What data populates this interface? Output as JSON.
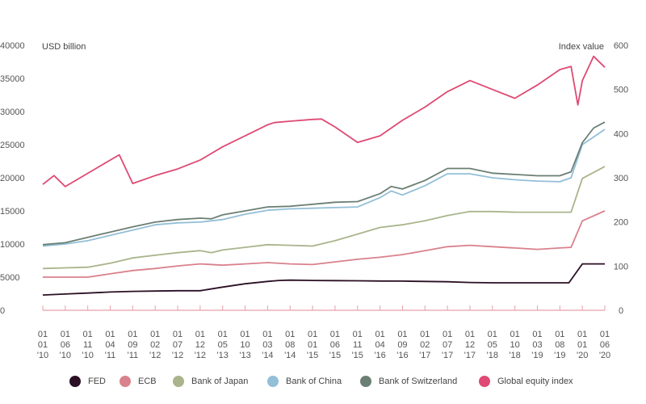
{
  "chart_data": {
    "type": "line",
    "title": "",
    "left_axis_label": "USD billion",
    "right_axis_label": "Index value",
    "left_ylim": [
      0,
      40000
    ],
    "left_yticks": [
      "0",
      "5000",
      "10000",
      "15000",
      "20000",
      "25000",
      "30000",
      "35000",
      "40000"
    ],
    "right_ylim": [
      0,
      600
    ],
    "right_yticks": [
      "0",
      "100",
      "200",
      "300",
      "400",
      "500",
      "600"
    ],
    "x_tick_labels": [
      [
        "01",
        "01",
        "'10"
      ],
      [
        "01",
        "06",
        "'10"
      ],
      [
        "01",
        "11",
        "'10"
      ],
      [
        "01",
        "04",
        "'11"
      ],
      [
        "01",
        "09",
        "'11"
      ],
      [
        "01",
        "02",
        "'12"
      ],
      [
        "01",
        "07",
        "'12"
      ],
      [
        "01",
        "12",
        "'12"
      ],
      [
        "01",
        "05",
        "'13"
      ],
      [
        "01",
        "10",
        "'13"
      ],
      [
        "01",
        "03",
        "'14"
      ],
      [
        "01",
        "08",
        "'14"
      ],
      [
        "01",
        "01",
        "'15"
      ],
      [
        "01",
        "06",
        "'15"
      ],
      [
        "01",
        "11",
        "'15"
      ],
      [
        "01",
        "04",
        "'16"
      ],
      [
        "01",
        "09",
        "'16"
      ],
      [
        "01",
        "02",
        "'17"
      ],
      [
        "01",
        "07",
        "'17"
      ],
      [
        "01",
        "12",
        "'17"
      ],
      [
        "01",
        "05",
        "'18"
      ],
      [
        "01",
        "10",
        "'18"
      ],
      [
        "01",
        "03",
        "'19"
      ],
      [
        "01",
        "08",
        "'19"
      ],
      [
        "01",
        "01",
        "'20"
      ],
      [
        "01",
        "06",
        "'20"
      ]
    ],
    "grid": false,
    "legend_position": "bottom",
    "series": [
      {
        "name": "FED",
        "color": "#2b0f24",
        "axis": "left",
        "points": [
          [
            0,
            2300
          ],
          [
            1,
            2450
          ],
          [
            2,
            2600
          ],
          [
            3,
            2750
          ],
          [
            4,
            2850
          ],
          [
            5,
            2900
          ],
          [
            6,
            2950
          ],
          [
            7,
            2950
          ],
          [
            8,
            3500
          ],
          [
            9,
            4000
          ],
          [
            10,
            4350
          ],
          [
            10.5,
            4500
          ],
          [
            11,
            4550
          ],
          [
            12,
            4500
          ],
          [
            13,
            4480
          ],
          [
            14,
            4450
          ],
          [
            15,
            4420
          ],
          [
            16,
            4400
          ],
          [
            17,
            4350
          ],
          [
            18,
            4300
          ],
          [
            19,
            4200
          ],
          [
            20,
            4150
          ],
          [
            21,
            4150
          ],
          [
            22,
            4150
          ],
          [
            23,
            4150
          ],
          [
            23.4,
            4150
          ],
          [
            24,
            7000
          ],
          [
            25,
            7000
          ]
        ]
      },
      {
        "name": "ECB",
        "color": "#d9818c",
        "axis": "left",
        "points": [
          [
            0,
            5000
          ],
          [
            1,
            5000
          ],
          [
            2,
            5000
          ],
          [
            3,
            5500
          ],
          [
            4,
            6000
          ],
          [
            5,
            6300
          ],
          [
            6,
            6700
          ],
          [
            7,
            7000
          ],
          [
            8,
            6800
          ],
          [
            9,
            7000
          ],
          [
            10,
            7200
          ],
          [
            11,
            7000
          ],
          [
            12,
            6900
          ],
          [
            13,
            7300
          ],
          [
            14,
            7700
          ],
          [
            15,
            8000
          ],
          [
            16,
            8400
          ],
          [
            17,
            9000
          ],
          [
            18,
            9600
          ],
          [
            19,
            9800
          ],
          [
            20,
            9600
          ],
          [
            21,
            9400
          ],
          [
            22,
            9200
          ],
          [
            23,
            9400
          ],
          [
            23.5,
            9500
          ],
          [
            24,
            13500
          ],
          [
            25,
            15000
          ]
        ]
      },
      {
        "name": "Bank of Japan",
        "color": "#a9b48c",
        "axis": "left",
        "points": [
          [
            0,
            6300
          ],
          [
            1,
            6400
          ],
          [
            2,
            6500
          ],
          [
            3,
            7100
          ],
          [
            4,
            7900
          ],
          [
            5,
            8300
          ],
          [
            6,
            8700
          ],
          [
            7,
            9000
          ],
          [
            7.5,
            8700
          ],
          [
            8,
            9100
          ],
          [
            9,
            9500
          ],
          [
            10,
            9900
          ],
          [
            11,
            9800
          ],
          [
            12,
            9700
          ],
          [
            13,
            10500
          ],
          [
            14,
            11500
          ],
          [
            15,
            12500
          ],
          [
            16,
            12900
          ],
          [
            17,
            13500
          ],
          [
            18,
            14300
          ],
          [
            19,
            14900
          ],
          [
            20,
            14900
          ],
          [
            21,
            14800
          ],
          [
            22,
            14800
          ],
          [
            23,
            14800
          ],
          [
            23.5,
            14800
          ],
          [
            24,
            19900
          ],
          [
            25,
            21700
          ]
        ]
      },
      {
        "name": "Bank of China",
        "color": "#93bfd7",
        "axis": "left",
        "points": [
          [
            0,
            9700
          ],
          [
            1,
            10000
          ],
          [
            2,
            10500
          ],
          [
            3,
            11300
          ],
          [
            4,
            12100
          ],
          [
            5,
            12900
          ],
          [
            6,
            13200
          ],
          [
            7,
            13300
          ],
          [
            8,
            13700
          ],
          [
            9,
            14500
          ],
          [
            10,
            15100
          ],
          [
            11,
            15300
          ],
          [
            12,
            15400
          ],
          [
            13,
            15500
          ],
          [
            14,
            15600
          ],
          [
            15,
            17000
          ],
          [
            15.5,
            18000
          ],
          [
            16,
            17400
          ],
          [
            17,
            18800
          ],
          [
            18,
            20600
          ],
          [
            19,
            20600
          ],
          [
            20,
            20000
          ],
          [
            21,
            19700
          ],
          [
            22,
            19500
          ],
          [
            23,
            19400
          ],
          [
            23.5,
            20000
          ],
          [
            24,
            25000
          ],
          [
            25,
            27300
          ]
        ]
      },
      {
        "name": "Bank of Switzerland",
        "color": "#6b7f74",
        "axis": "left",
        "points": [
          [
            0,
            9900
          ],
          [
            1,
            10200
          ],
          [
            2,
            11000
          ],
          [
            3,
            11800
          ],
          [
            4,
            12600
          ],
          [
            5,
            13300
          ],
          [
            6,
            13700
          ],
          [
            7,
            13900
          ],
          [
            7.5,
            13800
          ],
          [
            8,
            14400
          ],
          [
            9,
            15000
          ],
          [
            10,
            15600
          ],
          [
            11,
            15700
          ],
          [
            12,
            16000
          ],
          [
            13,
            16300
          ],
          [
            14,
            16400
          ],
          [
            15,
            17600
          ],
          [
            15.5,
            18700
          ],
          [
            16,
            18300
          ],
          [
            17,
            19600
          ],
          [
            18,
            21400
          ],
          [
            19,
            21400
          ],
          [
            20,
            20700
          ],
          [
            21,
            20500
          ],
          [
            22,
            20300
          ],
          [
            23,
            20300
          ],
          [
            23.5,
            20900
          ],
          [
            24,
            25300
          ],
          [
            24.5,
            27500
          ],
          [
            25,
            28400
          ]
        ]
      },
      {
        "name": "Global equity index",
        "color": "#de4a73",
        "axis": "right",
        "points": [
          [
            0,
            285
          ],
          [
            0.5,
            305
          ],
          [
            1,
            280
          ],
          [
            2,
            310
          ],
          [
            3,
            340
          ],
          [
            3.4,
            352
          ],
          [
            4,
            287
          ],
          [
            5,
            305
          ],
          [
            6,
            320
          ],
          [
            7,
            340
          ],
          [
            8,
            370
          ],
          [
            9,
            395
          ],
          [
            10,
            420
          ],
          [
            10.3,
            425
          ],
          [
            11,
            428
          ],
          [
            12,
            432
          ],
          [
            12.4,
            433
          ],
          [
            13,
            415
          ],
          [
            14,
            380
          ],
          [
            15,
            395
          ],
          [
            16,
            430
          ],
          [
            17,
            460
          ],
          [
            18,
            495
          ],
          [
            19,
            520
          ],
          [
            20,
            500
          ],
          [
            21,
            480
          ],
          [
            22,
            510
          ],
          [
            23,
            545
          ],
          [
            23.5,
            552
          ],
          [
            23.8,
            465
          ],
          [
            24,
            520
          ],
          [
            24.5,
            575
          ],
          [
            25,
            550
          ]
        ]
      }
    ]
  }
}
